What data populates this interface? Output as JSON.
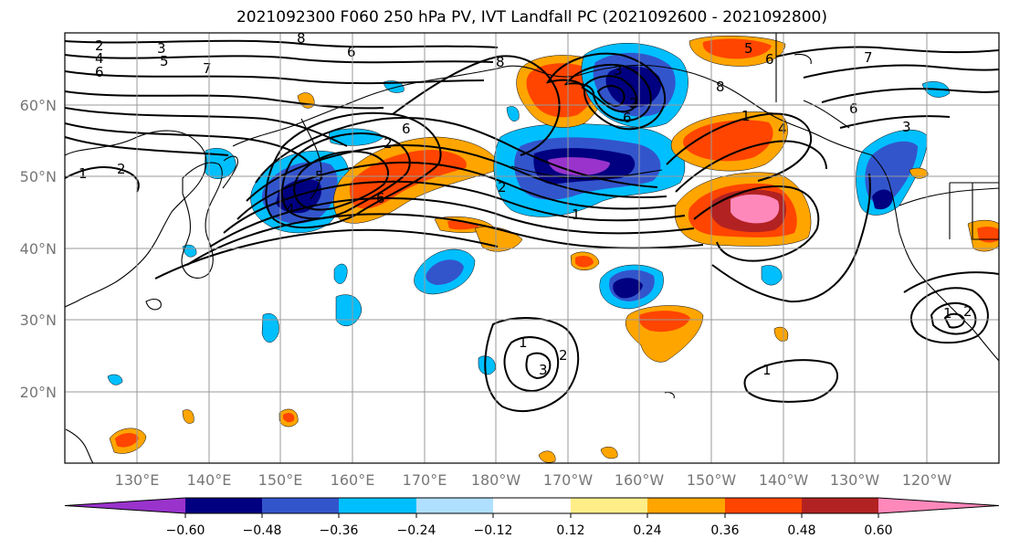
{
  "title": "2021092300 F060 250 hPa PV, IVT Landfall PC (2021092600 - 2021092800)",
  "lat_labels": [
    "60°N",
    "50°N",
    "40°N",
    "30°N",
    "20°N"
  ],
  "lon_labels": [
    "130°E",
    "140°E",
    "150°E",
    "160°E",
    "170°E",
    "180°W",
    "170°W",
    "160°W",
    "150°W",
    "140°W",
    "130°W",
    "120°W"
  ],
  "colorbar": {
    "tick_labels": [
      "−0.60",
      "−0.48",
      "−0.36",
      "−0.24",
      "−0.12",
      "0.12",
      "0.24",
      "0.36",
      "0.48",
      "0.60"
    ],
    "colors": [
      "#9933cc",
      "#000080",
      "#3355cc",
      "#00bfff",
      "#b0e0ff",
      "#ffffff",
      "#ffee88",
      "#ffa500",
      "#ff4500",
      "#b22222",
      "#ff88bb"
    ]
  },
  "contour_labels": [
    "2",
    "4",
    "6",
    "3",
    "5",
    "7",
    "8",
    "6",
    "2",
    "1",
    "2",
    "4",
    "5",
    "6",
    "8",
    "6",
    "5",
    "7",
    "6",
    "1",
    "4",
    "6",
    "3",
    "2",
    "1",
    "1",
    "2",
    "3",
    "1",
    "3",
    "2",
    "1",
    "2",
    "6",
    "8"
  ]
}
